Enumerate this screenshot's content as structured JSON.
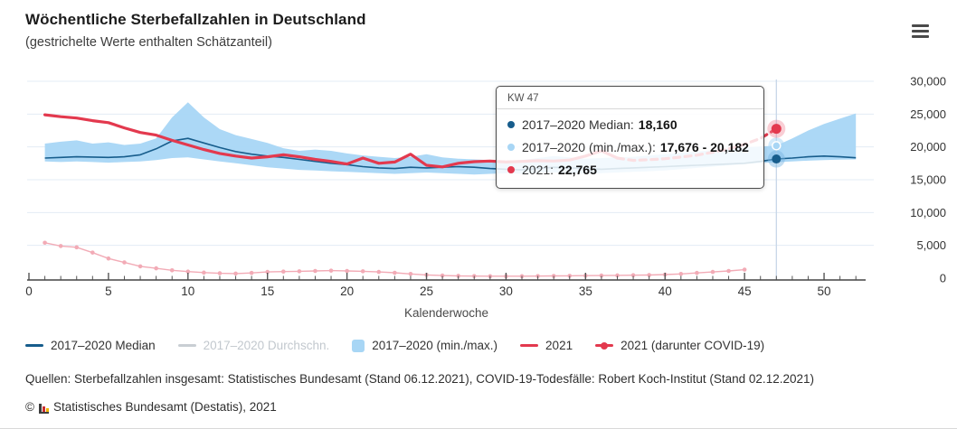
{
  "header": {
    "title": "Wöchentliche Sterbefallzahlen in Deutschland",
    "subtitle": "(gestrichelte Werte enthalten Schätzanteil)",
    "menu_icon": "hamburger-icon"
  },
  "tooltip": {
    "header": "KW 47",
    "rows": [
      {
        "label": "2017–2020 Median:",
        "value": "18,160",
        "color": "#175d8c"
      },
      {
        "label": "2017–2020 (min./max.):",
        "value": "17,676 - 20,182",
        "color": "#a8d6f5"
      },
      {
        "label": "2021:",
        "value": "22,765",
        "color": "#e3394e"
      }
    ]
  },
  "legend": {
    "items": [
      {
        "id": "median",
        "label": "2017–2020 Median",
        "swatch": "line",
        "color": "#175d8c",
        "text_color": "#333333",
        "active": true
      },
      {
        "id": "avg",
        "label": "2017–2020 Durchschn.",
        "swatch": "line",
        "color": "#c9ced3",
        "text_color": "#c2c8ce",
        "active": false
      },
      {
        "id": "minmax",
        "label": "2017–2020 (min./max.)",
        "swatch": "square",
        "color": "#a8d6f5",
        "text_color": "#333333",
        "active": true
      },
      {
        "id": "y2021",
        "label": "2021",
        "swatch": "line",
        "color": "#e3394e",
        "text_color": "#333333",
        "active": true
      },
      {
        "id": "covid",
        "label": "2021 (darunter COVID-19)",
        "swatch": "line-dot",
        "color": "#e3394e",
        "text_color": "#333333",
        "active": true
      }
    ]
  },
  "footer": {
    "sources": "Quellen: Sterbefallzahlen insgesamt: Statistisches Bundesamt (Stand 06.12.2021), COVID-19-Todesfälle: Robert Koch-Institut (Stand 02.12.2021)",
    "copyright_prefix": "©",
    "copyright": "Statistisches Bundesamt (Destatis), 2021",
    "logo_icon": "destatis-bars-icon"
  },
  "chart_data": {
    "type": "line",
    "title": "Wöchentliche Sterbefallzahlen in Deutschland",
    "xlabel": "Kalenderwoche",
    "ylabel": "",
    "xlim": [
      0,
      52.5
    ],
    "ylim": [
      0,
      30000
    ],
    "grid": "horizontal",
    "legend_position": "bottom",
    "x_ticks": [
      0,
      5,
      10,
      15,
      20,
      25,
      30,
      35,
      40,
      45,
      50
    ],
    "x_minor_step": 1,
    "x_minor_max": 52,
    "y_ticks": [
      {
        "v": 0,
        "label": "0"
      },
      {
        "v": 5000,
        "label": "5,000"
      },
      {
        "v": 10000,
        "label": "10,000"
      },
      {
        "v": 15000,
        "label": "15,000"
      },
      {
        "v": 20000,
        "label": "20,000"
      },
      {
        "v": 25000,
        "label": "25,000"
      },
      {
        "v": 30000,
        "label": "30,000"
      }
    ],
    "highlight_week": 47,
    "series": [
      {
        "id": "median",
        "name": "2017–2020 Median",
        "type": "line",
        "color": "#175d8c",
        "width": 1.6,
        "start_week": 1,
        "values": [
          18300,
          18400,
          18500,
          18450,
          18400,
          18500,
          18800,
          19700,
          20900,
          21300,
          20600,
          19900,
          19300,
          18900,
          18600,
          18400,
          18100,
          17800,
          17500,
          17300,
          17000,
          16800,
          16700,
          16900,
          16800,
          16900,
          17000,
          16900,
          16700,
          16600,
          16500,
          16700,
          16900,
          16800,
          16700,
          16600,
          16700,
          16800,
          16900,
          17000,
          17100,
          17200,
          17300,
          17400,
          17500,
          17800,
          18160,
          18300,
          18500,
          18600,
          18500,
          18350
        ]
      },
      {
        "id": "avg",
        "name": "2017–2020 Durchschn.",
        "type": "line",
        "color": "#c9ced3",
        "width": 1.6,
        "visible": false,
        "start_week": 1,
        "values": []
      },
      {
        "id": "minmax",
        "name": "2017–2020 (min./max.)",
        "type": "band",
        "color": "#a8d6f5",
        "start_week": 1,
        "min": [
          17800,
          17700,
          17800,
          17700,
          17600,
          17700,
          17800,
          18000,
          18300,
          18400,
          18100,
          17800,
          17500,
          17200,
          16900,
          16700,
          16500,
          16400,
          16300,
          16200,
          16100,
          16000,
          15900,
          16000,
          16100,
          16000,
          15900,
          15800,
          15900,
          16000,
          15900,
          16000,
          16100,
          16000,
          15900,
          16000,
          16100,
          16200,
          16300,
          16400,
          16600,
          16800,
          17000,
          17200,
          17400,
          17550,
          17676,
          17800,
          17900,
          18000,
          18050,
          18100
        ],
        "max": [
          20500,
          20800,
          21000,
          20500,
          20700,
          20300,
          20500,
          21300,
          24500,
          26800,
          24500,
          22700,
          21800,
          21200,
          20600,
          19800,
          19400,
          19600,
          19400,
          19000,
          18700,
          18500,
          18300,
          18500,
          18900,
          18400,
          18200,
          18100,
          18000,
          17900,
          18000,
          18300,
          18600,
          18400,
          18200,
          18300,
          18400,
          18500,
          18700,
          18900,
          19100,
          19300,
          19500,
          19700,
          19900,
          20050,
          20182,
          21300,
          22500,
          23500,
          24300,
          25100
        ]
      },
      {
        "id": "y2021",
        "name": "2021",
        "type": "line",
        "color": "#e3394e",
        "width": 3.2,
        "start_week": 1,
        "dashed_from_week": 37,
        "values": [
          24900,
          24600,
          24400,
          24000,
          23700,
          22900,
          22200,
          21800,
          21000,
          20300,
          19600,
          19000,
          18600,
          18300,
          18500,
          18800,
          18500,
          18100,
          17800,
          17400,
          18300,
          17500,
          17700,
          18900,
          17200,
          16950,
          17500,
          17750,
          17850,
          17700,
          17800,
          17900,
          17850,
          18000,
          18600,
          19400,
          18300,
          17950,
          18050,
          18200,
          18450,
          18750,
          19200,
          19700,
          20400,
          21300,
          22765
        ]
      },
      {
        "id": "covid",
        "name": "2021 (darunter COVID-19)",
        "type": "line-markers",
        "color": "#f2abb6",
        "width": 1.4,
        "start_week": 1,
        "values": [
          5400,
          4900,
          4700,
          3900,
          3000,
          2400,
          1800,
          1500,
          1200,
          1000,
          850,
          750,
          700,
          800,
          950,
          1000,
          1050,
          1100,
          1150,
          1100,
          1050,
          950,
          820,
          650,
          500,
          400,
          350,
          320,
          300,
          300,
          300,
          320,
          340,
          360,
          380,
          400,
          420,
          450,
          480,
          550,
          650,
          800,
          950,
          1100,
          1300
        ]
      }
    ],
    "markers": [
      {
        "series": "minmax",
        "value": 20182,
        "color": "#a8d6f5",
        "stroke": "#ffffff",
        "r": 4.5,
        "halo": "rgba(168,214,245,0.5)",
        "halo_r": 9
      },
      {
        "series": "median",
        "value": 18160,
        "color": "#175d8c",
        "stroke": "none",
        "r": 5,
        "halo": "rgba(120,180,225,0.45)",
        "halo_r": 9.5
      },
      {
        "series": "y2021",
        "value": 22765,
        "color": "#e3394e",
        "stroke": "none",
        "r": 5.5,
        "halo": "rgba(238,125,145,0.38)",
        "halo_r": 10
      }
    ],
    "colors": {
      "grid": "#e3ecf5",
      "axis": "#444444",
      "highlight_line": "#c7d7e8",
      "tick_text": "#333333"
    }
  }
}
